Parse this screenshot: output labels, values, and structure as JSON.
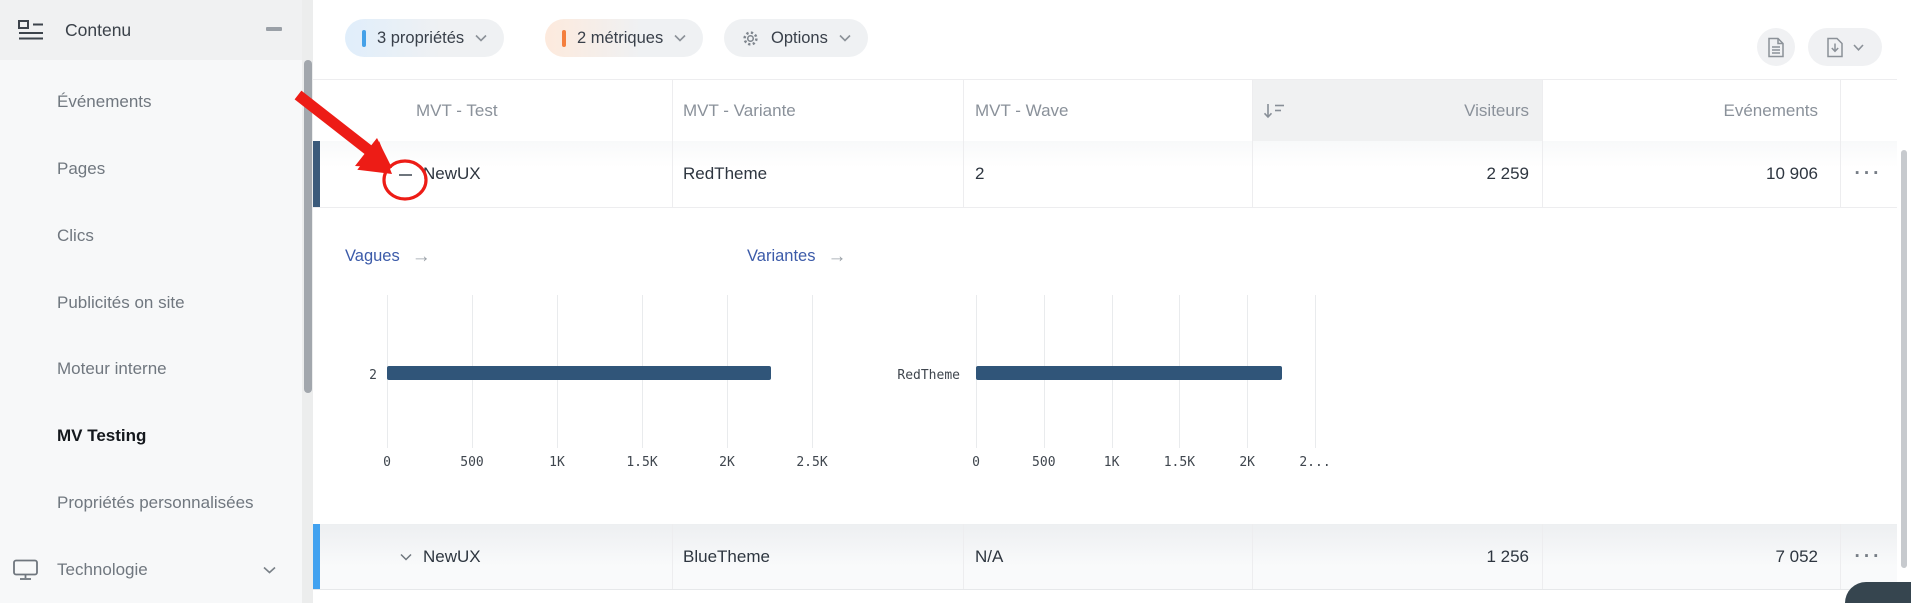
{
  "sidebar": {
    "title": "Contenu",
    "items": [
      {
        "label": "Événements",
        "active": false
      },
      {
        "label": "Pages",
        "active": false
      },
      {
        "label": "Clics",
        "active": false
      },
      {
        "label": "Publicités on site",
        "active": false
      },
      {
        "label": "Moteur interne",
        "active": false
      },
      {
        "label": "MV Testing",
        "active": true
      },
      {
        "label": "Propriétés personnalisées",
        "active": false
      },
      {
        "label": "Technologie",
        "active": false,
        "icon": "monitor-icon",
        "expandable": true
      }
    ]
  },
  "toolbar": {
    "chips": [
      {
        "label": "3 propriétés",
        "accent_color": "#45a1e8"
      },
      {
        "label": "2 métriques",
        "accent_color": "#f47f3e"
      },
      {
        "label": "Options",
        "icon": "gear-icon"
      }
    ],
    "actions": [
      {
        "icon": "document-icon"
      },
      {
        "icon": "download-icon",
        "has_chevron": true
      }
    ]
  },
  "table": {
    "columns": [
      {
        "label": "MVT - Test"
      },
      {
        "label": "MVT - Variante"
      },
      {
        "label": "MVT - Wave"
      },
      {
        "label": "Visiteurs",
        "sorted": "desc"
      },
      {
        "label": "Evénements"
      }
    ],
    "rows": [
      {
        "test": "NewUX",
        "variante": "RedTheme",
        "wave": "2",
        "visiteurs": "2 259",
        "evenements": "10 906",
        "state": "expanded",
        "actions": "···"
      },
      {
        "test": "NewUX",
        "variante": "BlueTheme",
        "wave": "N/A",
        "visiteurs": "1 256",
        "evenements": "7 052",
        "state": "collapsed",
        "actions": "···"
      }
    ]
  },
  "expanded_panel": {
    "links": [
      {
        "label": "Vagues",
        "arrow": "→"
      },
      {
        "label": "Variantes",
        "arrow": "→"
      }
    ]
  },
  "chart_data": [
    {
      "type": "bar",
      "orientation": "horizontal",
      "title": "Vagues",
      "categories": [
        "2"
      ],
      "values": [
        2259
      ],
      "xticks": [
        "0",
        "500",
        "1K",
        "1.5K",
        "2K",
        "2.5K"
      ],
      "xlim": [
        0,
        2500
      ],
      "bar_color": "#305579",
      "grid": true,
      "legend": false
    },
    {
      "type": "bar",
      "orientation": "horizontal",
      "title": "Variantes",
      "categories": [
        "RedTheme"
      ],
      "values": [
        2259
      ],
      "xticks": [
        "0",
        "500",
        "1K",
        "1.5K",
        "2K",
        "2..."
      ],
      "xlim": [
        0,
        2500
      ],
      "bar_color": "#305579",
      "grid": true,
      "legend": false
    }
  ],
  "annotation": {
    "shape": "arrow-and-circle",
    "color": "#ed1c16",
    "target": "row-1-collapse-control"
  },
  "colors": {
    "accent_blue": "#45a1e8",
    "accent_orange": "#f47f3e",
    "link_blue": "#3c5ba9",
    "bar_navy": "#305579",
    "selected_row_indicator": "#3b5a7a",
    "active_row_indicator": "#42a2f0",
    "annotation_red": "#ed1c16"
  }
}
